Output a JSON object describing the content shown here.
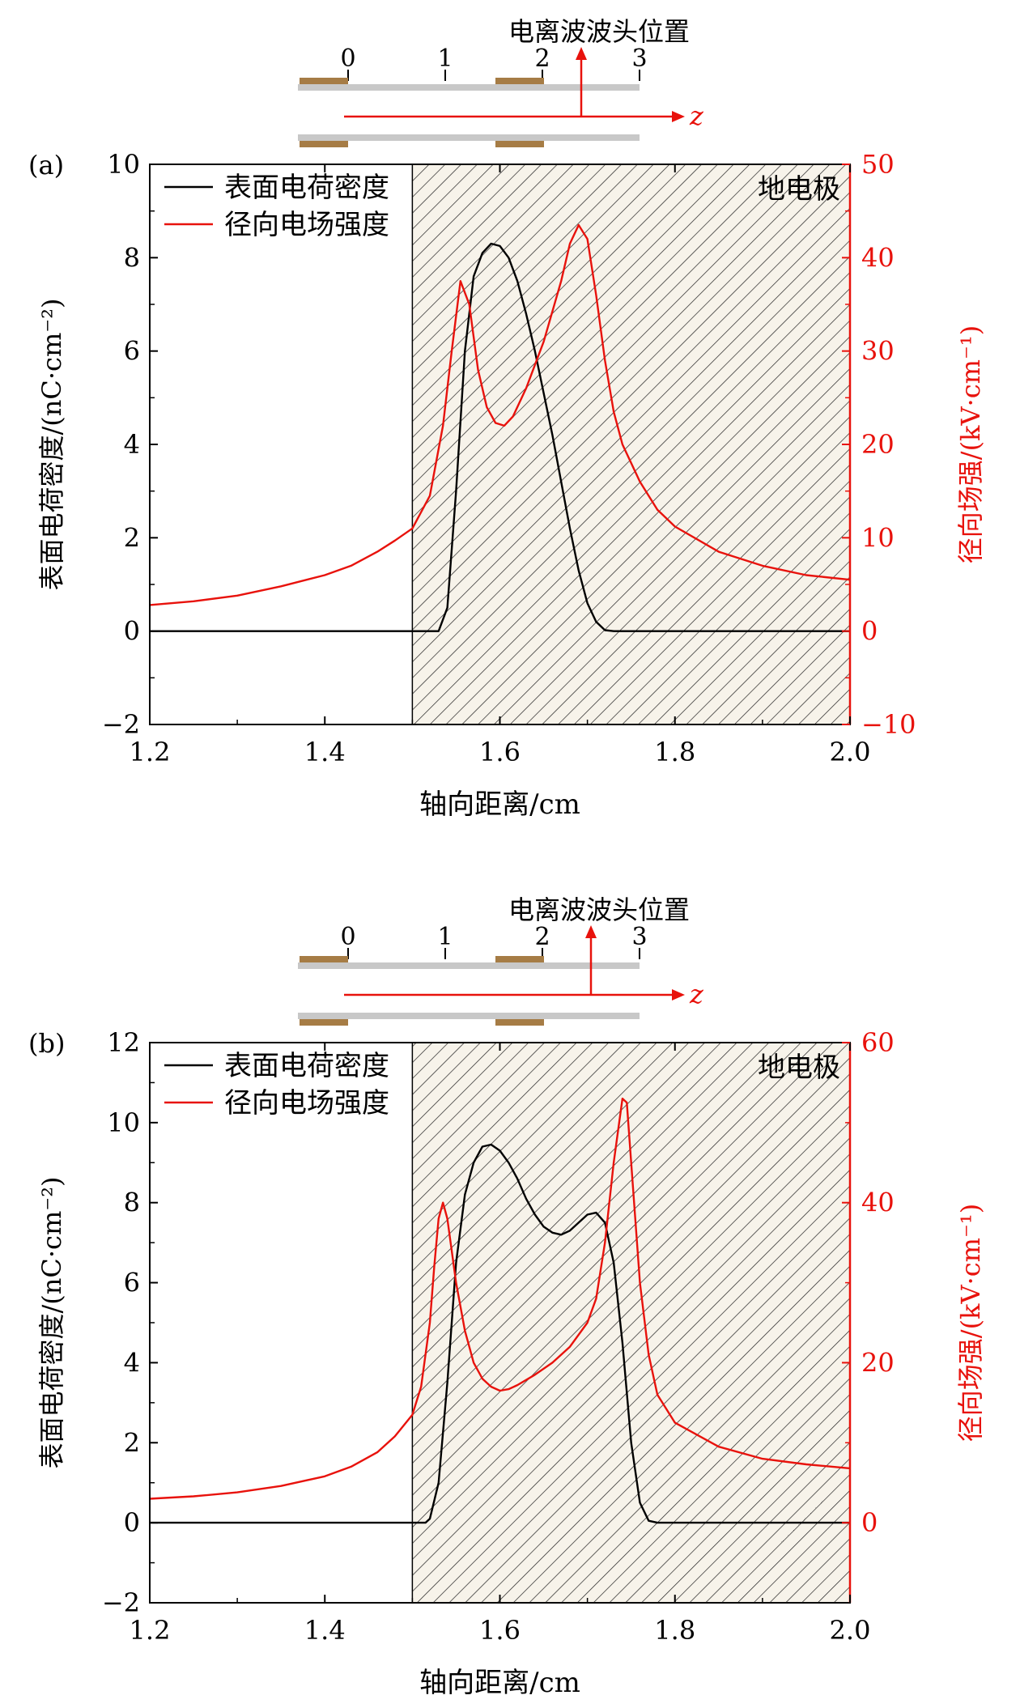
{
  "chart_data": [
    {
      "type": "line",
      "panel_label": "(a)",
      "schematic": {
        "title": "电离波波头位置",
        "ticks": [
          "0",
          "1",
          "2",
          "3"
        ],
        "axis_label": "z",
        "front_position": 2.4
      },
      "shaded_region": {
        "x_start": 1.5,
        "x_end": 2.0,
        "label": "地电极"
      },
      "xlabel": "轴向距离/cm",
      "ylabel_left": "表面电荷密度/(nC·cm⁻²)",
      "ylabel_right": "径向场强/(kV·cm⁻¹)",
      "xlim": [
        1.2,
        2.0
      ],
      "ylim_left": [
        -2,
        10
      ],
      "ylim_right": [
        -10,
        50
      ],
      "xticks": [
        1.2,
        1.4,
        1.6,
        1.8,
        2.0
      ],
      "xtick_labels": [
        "1.2",
        "1.4",
        "1.6",
        "1.8",
        "2.0"
      ],
      "yticks_left": [
        -2,
        0,
        2,
        4,
        6,
        8,
        10
      ],
      "ytick_labels_left": [
        "−2",
        "0",
        "2",
        "4",
        "6",
        "8",
        "10"
      ],
      "yticks_right": [
        -10,
        0,
        10,
        20,
        30,
        40,
        50
      ],
      "ytick_labels_right": [
        "−10",
        "0",
        "10",
        "20",
        "30",
        "40",
        "50"
      ],
      "legend": "top-left",
      "series": [
        {
          "name": "表面电荷密度",
          "axis": "left",
          "color": "#000000",
          "points": [
            [
              1.2,
              0
            ],
            [
              1.5,
              0
            ],
            [
              1.53,
              0
            ],
            [
              1.54,
              0.5
            ],
            [
              1.55,
              3.0
            ],
            [
              1.56,
              6.0
            ],
            [
              1.57,
              7.6
            ],
            [
              1.58,
              8.1
            ],
            [
              1.59,
              8.3
            ],
            [
              1.6,
              8.25
            ],
            [
              1.61,
              8.0
            ],
            [
              1.62,
              7.5
            ],
            [
              1.63,
              6.8
            ],
            [
              1.64,
              6.0
            ],
            [
              1.65,
              5.1
            ],
            [
              1.66,
              4.2
            ],
            [
              1.67,
              3.2
            ],
            [
              1.68,
              2.2
            ],
            [
              1.69,
              1.3
            ],
            [
              1.7,
              0.6
            ],
            [
              1.71,
              0.2
            ],
            [
              1.72,
              0.02
            ],
            [
              1.73,
              0
            ],
            [
              2.0,
              0
            ]
          ]
        },
        {
          "name": "径向电场强度",
          "axis": "right",
          "color": "#e8120c",
          "points": [
            [
              1.2,
              2.8
            ],
            [
              1.25,
              3.2
            ],
            [
              1.3,
              3.8
            ],
            [
              1.35,
              4.8
            ],
            [
              1.4,
              6.0
            ],
            [
              1.43,
              7.0
            ],
            [
              1.46,
              8.5
            ],
            [
              1.48,
              9.7
            ],
            [
              1.5,
              11.0
            ],
            [
              1.52,
              14.5
            ],
            [
              1.535,
              22
            ],
            [
              1.545,
              30
            ],
            [
              1.555,
              37.5
            ],
            [
              1.565,
              35
            ],
            [
              1.575,
              28
            ],
            [
              1.585,
              24
            ],
            [
              1.595,
              22.3
            ],
            [
              1.605,
              22.0
            ],
            [
              1.615,
              23.0
            ],
            [
              1.63,
              26.0
            ],
            [
              1.65,
              31.0
            ],
            [
              1.67,
              37.5
            ],
            [
              1.68,
              41.5
            ],
            [
              1.69,
              43.5
            ],
            [
              1.7,
              42.0
            ],
            [
              1.71,
              36.0
            ],
            [
              1.72,
              29.0
            ],
            [
              1.73,
              23.5
            ],
            [
              1.74,
              20.0
            ],
            [
              1.76,
              16.0
            ],
            [
              1.78,
              13.0
            ],
            [
              1.8,
              11.2
            ],
            [
              1.85,
              8.5
            ],
            [
              1.9,
              7.0
            ],
            [
              1.95,
              6.0
            ],
            [
              2.0,
              5.5
            ]
          ]
        }
      ]
    },
    {
      "type": "line",
      "panel_label": "(b)",
      "schematic": {
        "title": "电离波波头位置",
        "ticks": [
          "0",
          "1",
          "2",
          "3"
        ],
        "axis_label": "z",
        "front_position": 2.5
      },
      "shaded_region": {
        "x_start": 1.5,
        "x_end": 2.0,
        "label": "地电极"
      },
      "xlabel": "轴向距离/cm",
      "ylabel_left": "表面电荷密度/(nC·cm⁻²)",
      "ylabel_right": "径向场强/(kV·cm⁻¹)",
      "xlim": [
        1.2,
        2.0
      ],
      "ylim_left": [
        -2,
        12
      ],
      "ylim_right": [
        -10,
        60
      ],
      "xticks": [
        1.2,
        1.4,
        1.6,
        1.8,
        2.0
      ],
      "xtick_labels": [
        "1.2",
        "1.4",
        "1.6",
        "1.8",
        "2.0"
      ],
      "yticks_left": [
        -2,
        0,
        2,
        4,
        6,
        8,
        10,
        12
      ],
      "ytick_labels_left": [
        "−2",
        "0",
        "2",
        "4",
        "6",
        "8",
        "10",
        "12"
      ],
      "yticks_right": [
        0,
        20,
        40,
        60
      ],
      "ytick_labels_right": [
        "0",
        "20",
        "40",
        "60"
      ],
      "legend": "top-left",
      "series": [
        {
          "name": "表面电荷密度",
          "axis": "left",
          "color": "#000000",
          "points": [
            [
              1.2,
              0
            ],
            [
              1.5,
              0
            ],
            [
              1.515,
              0
            ],
            [
              1.52,
              0.1
            ],
            [
              1.53,
              1.0
            ],
            [
              1.54,
              3.5
            ],
            [
              1.55,
              6.5
            ],
            [
              1.56,
              8.2
            ],
            [
              1.57,
              9.0
            ],
            [
              1.58,
              9.4
            ],
            [
              1.59,
              9.45
            ],
            [
              1.6,
              9.3
            ],
            [
              1.61,
              9.0
            ],
            [
              1.62,
              8.6
            ],
            [
              1.63,
              8.1
            ],
            [
              1.64,
              7.7
            ],
            [
              1.65,
              7.4
            ],
            [
              1.66,
              7.25
            ],
            [
              1.67,
              7.2
            ],
            [
              1.68,
              7.3
            ],
            [
              1.69,
              7.5
            ],
            [
              1.7,
              7.7
            ],
            [
              1.71,
              7.75
            ],
            [
              1.72,
              7.5
            ],
            [
              1.73,
              6.5
            ],
            [
              1.74,
              4.5
            ],
            [
              1.75,
              2.0
            ],
            [
              1.76,
              0.5
            ],
            [
              1.77,
              0.05
            ],
            [
              1.78,
              0
            ],
            [
              2.0,
              0
            ]
          ]
        },
        {
          "name": "径向电场强度",
          "axis": "right",
          "color": "#e8120c",
          "points": [
            [
              1.2,
              3.0
            ],
            [
              1.25,
              3.3
            ],
            [
              1.3,
              3.8
            ],
            [
              1.35,
              4.6
            ],
            [
              1.4,
              5.8
            ],
            [
              1.43,
              7.0
            ],
            [
              1.46,
              8.8
            ],
            [
              1.48,
              10.8
            ],
            [
              1.5,
              13.5
            ],
            [
              1.51,
              17
            ],
            [
              1.52,
              25
            ],
            [
              1.525,
              32
            ],
            [
              1.53,
              38
            ],
            [
              1.535,
              40
            ],
            [
              1.54,
              38
            ],
            [
              1.55,
              30
            ],
            [
              1.56,
              24
            ],
            [
              1.57,
              20
            ],
            [
              1.58,
              18
            ],
            [
              1.59,
              17
            ],
            [
              1.6,
              16.5
            ],
            [
              1.61,
              16.7
            ],
            [
              1.62,
              17.2
            ],
            [
              1.64,
              18.5
            ],
            [
              1.66,
              20.0
            ],
            [
              1.68,
              22.0
            ],
            [
              1.7,
              25.0
            ],
            [
              1.71,
              28
            ],
            [
              1.72,
              35
            ],
            [
              1.73,
              45
            ],
            [
              1.74,
              53
            ],
            [
              1.745,
              52.5
            ],
            [
              1.75,
              45
            ],
            [
              1.76,
              30
            ],
            [
              1.77,
              21
            ],
            [
              1.78,
              16
            ],
            [
              1.8,
              12.5
            ],
            [
              1.85,
              9.5
            ],
            [
              1.9,
              8.0
            ],
            [
              1.95,
              7.3
            ],
            [
              2.0,
              6.8
            ]
          ]
        }
      ]
    }
  ]
}
